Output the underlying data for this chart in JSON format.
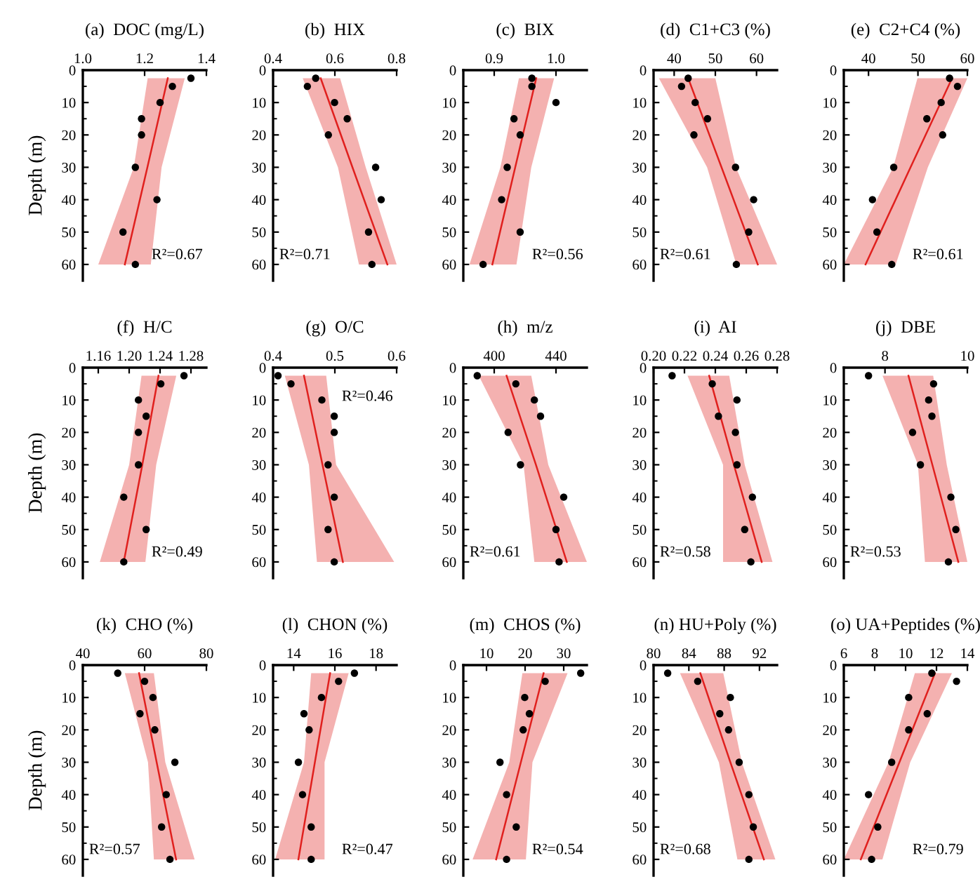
{
  "chart_data": [
    {
      "type": "scatter",
      "orientation": "horizontal",
      "title": "(a)  DOC (mg/L)",
      "ylabel": "Depth (m)",
      "xlim": [
        1.0,
        1.4
      ],
      "xticks": [
        {
          "value": 1.0,
          "label": "1.0"
        },
        1.2,
        1.4
      ],
      "ylim": [
        65,
        0
      ],
      "yticks": [
        0,
        10,
        20,
        30,
        40,
        50,
        60,
        {
          "value": 5,
          "label": null
        },
        {
          "value": 15,
          "label": null
        },
        {
          "value": 25,
          "label": null
        },
        {
          "value": 35,
          "label": null
        },
        {
          "value": 45,
          "label": null
        },
        {
          "value": 55,
          "label": null
        }
      ],
      "annotations": [
        "R²=0.67"
      ],
      "series": [
        {
          "marker": "circle",
          "color": "#000000",
          "x": [
            2.5,
            5,
            10,
            15,
            20,
            30,
            40,
            50,
            60
          ],
          "values": [
            1.35,
            1.29,
            1.25,
            1.19,
            1.19,
            1.17,
            1.24,
            1.13,
            1.17
          ]
        },
        {
          "type": "line",
          "color": "#e0201e",
          "x": [
            2.5,
            30,
            60
          ],
          "values": [
            1.275,
            1.209,
            1.136
          ],
          "lower": [
            1.21,
            1.165,
            1.05
          ],
          "upper": [
            1.33,
            1.255,
            1.22
          ]
        }
      ]
    },
    {
      "type": "scatter",
      "orientation": "horizontal",
      "title": "(b)  HIX",
      "xlim": [
        0.4,
        0.8
      ],
      "xticks": [
        0.4,
        0.6,
        0.8
      ],
      "ylim": [
        65,
        0
      ],
      "yticks": [
        0,
        10,
        20,
        30,
        40,
        50,
        60,
        {
          "value": 5,
          "label": null
        },
        {
          "value": 15,
          "label": null
        },
        {
          "value": 25,
          "label": null
        },
        {
          "value": 35,
          "label": null
        },
        {
          "value": 45,
          "label": null
        },
        {
          "value": 55,
          "label": null
        }
      ],
      "annotations": [
        "R²=0.71"
      ],
      "series": [
        {
          "marker": "circle",
          "color": "#000000",
          "x": [
            2.5,
            5,
            10,
            15,
            20,
            30,
            40,
            50,
            60
          ],
          "values": [
            0.538,
            0.511,
            0.599,
            0.64,
            0.579,
            0.732,
            0.75,
            0.709,
            0.72
          ]
        },
        {
          "type": "line",
          "color": "#e0201e",
          "x": [
            2.5,
            30,
            60
          ],
          "values": [
            0.554,
            0.657,
            0.77
          ],
          "lower": [
            0.496,
            0.61,
            0.678
          ],
          "upper": [
            0.617,
            0.7,
            0.8
          ]
        }
      ]
    },
    {
      "type": "scatter",
      "orientation": "horizontal",
      "title": "(c)  BIX",
      "xlim": [
        0.85,
        1.05
      ],
      "xticks": [
        0.9,
        {
          "value": 1.0,
          "label": "1.0"
        }
      ],
      "ylim": [
        65,
        0
      ],
      "yticks": [
        0,
        10,
        20,
        30,
        40,
        50,
        60,
        {
          "value": 5,
          "label": null
        },
        {
          "value": 15,
          "label": null
        },
        {
          "value": 25,
          "label": null
        },
        {
          "value": 35,
          "label": null
        },
        {
          "value": 45,
          "label": null
        },
        {
          "value": 55,
          "label": null
        }
      ],
      "annotations": [
        "R²=0.56"
      ],
      "series": [
        {
          "marker": "circle",
          "color": "#000000",
          "x": [
            2.5,
            5,
            10,
            15,
            20,
            30,
            40,
            50,
            60
          ],
          "values": [
            0.961,
            0.961,
            1.0,
            0.932,
            0.942,
            0.921,
            0.912,
            0.942,
            0.882
          ]
        },
        {
          "type": "line",
          "color": "#e0201e",
          "x": [
            2.5,
            30,
            60
          ],
          "values": [
            0.968,
            0.934,
            0.897
          ],
          "lower": [
            0.94,
            0.91,
            0.86
          ],
          "upper": [
            0.997,
            0.96,
            0.936
          ]
        }
      ]
    },
    {
      "type": "scatter",
      "orientation": "horizontal",
      "title": "(d)  C1+C3 (%)",
      "xlim": [
        35,
        65
      ],
      "xticks": [
        40,
        50,
        60
      ],
      "ylim": [
        65,
        0
      ],
      "yticks": [
        0,
        10,
        20,
        30,
        40,
        50,
        60,
        {
          "value": 5,
          "label": null
        },
        {
          "value": 15,
          "label": null
        },
        {
          "value": 25,
          "label": null
        },
        {
          "value": 35,
          "label": null
        },
        {
          "value": 45,
          "label": null
        },
        {
          "value": 55,
          "label": null
        }
      ],
      "annotations": [
        "R²=0.61"
      ],
      "series": [
        {
          "marker": "circle",
          "color": "#000000",
          "x": [
            2.5,
            5,
            10,
            15,
            20,
            30,
            40,
            50,
            60
          ],
          "values": [
            43.4,
            41.8,
            45.1,
            48.1,
            44.8,
            54.9,
            59.3,
            58.1,
            55.1
          ]
        },
        {
          "type": "line",
          "color": "#e0201e",
          "x": [
            2.5,
            30,
            60
          ],
          "values": [
            43.4,
            51.5,
            60.3
          ],
          "lower": [
            36.3,
            48,
            55.1
          ],
          "upper": [
            50,
            55,
            65
          ]
        }
      ]
    },
    {
      "type": "scatter",
      "orientation": "horizontal",
      "title": "(e)  C2+C4 (%)",
      "xlim": [
        35,
        60
      ],
      "xticks": [
        40,
        50,
        60
      ],
      "ylim": [
        65,
        0
      ],
      "yticks": [
        0,
        10,
        20,
        30,
        40,
        50,
        60,
        {
          "value": 5,
          "label": null
        },
        {
          "value": 15,
          "label": null
        },
        {
          "value": 25,
          "label": null
        },
        {
          "value": 35,
          "label": null
        },
        {
          "value": 45,
          "label": null
        },
        {
          "value": 55,
          "label": null
        }
      ],
      "annotations": [
        "R²=0.61"
      ],
      "series": [
        {
          "marker": "circle",
          "color": "#000000",
          "x": [
            2.5,
            5,
            10,
            15,
            20,
            30,
            40,
            50,
            60
          ],
          "values": [
            56.4,
            58,
            54.7,
            51.8,
            55,
            45.1,
            40.8,
            41.7,
            44.7
          ]
        },
        {
          "type": "line",
          "color": "#e0201e",
          "x": [
            2.5,
            30,
            60
          ],
          "values": [
            56.9,
            48.5,
            39.4
          ],
          "lower": [
            49.9,
            45,
            35
          ],
          "upper": [
            60,
            52,
            45.5
          ]
        }
      ]
    },
    {
      "type": "scatter",
      "orientation": "horizontal",
      "title": "(f)  H/C",
      "ylabel": "Depth (m)",
      "xlim": [
        1.14,
        1.3
      ],
      "xticks": [
        1.16,
        {
          "value": 1.2,
          "label": "1.20"
        },
        1.24,
        1.28
      ],
      "ylim": [
        65,
        0
      ],
      "yticks": [
        0,
        10,
        20,
        30,
        40,
        50,
        60,
        {
          "value": 5,
          "label": null
        },
        {
          "value": 15,
          "label": null
        },
        {
          "value": 25,
          "label": null
        },
        {
          "value": 35,
          "label": null
        },
        {
          "value": 45,
          "label": null
        },
        {
          "value": 55,
          "label": null
        }
      ],
      "annotations": [
        "R²=0.49"
      ],
      "series": [
        {
          "marker": "circle",
          "color": "#000000",
          "x": [
            2.5,
            5,
            10,
            15,
            20,
            30,
            40,
            50,
            60
          ],
          "values": [
            1.271,
            1.241,
            1.212,
            1.222,
            1.212,
            1.212,
            1.193,
            1.222,
            1.193
          ]
        },
        {
          "type": "line",
          "color": "#e0201e",
          "x": [
            2.5,
            30,
            60
          ],
          "values": [
            1.238,
            1.217,
            1.193
          ],
          "lower": [
            1.216,
            1.2,
            1.162
          ],
          "upper": [
            1.261,
            1.235,
            1.221
          ]
        }
      ]
    },
    {
      "type": "scatter",
      "orientation": "horizontal",
      "title": "(g)  O/C",
      "xlim": [
        0.4,
        0.6
      ],
      "xticks": [
        0.4,
        0.5,
        0.6
      ],
      "ylim": [
        65,
        0
      ],
      "yticks": [
        0,
        10,
        20,
        30,
        40,
        50,
        60,
        {
          "value": 5,
          "label": null
        },
        {
          "value": 15,
          "label": null
        },
        {
          "value": 25,
          "label": null
        },
        {
          "value": 35,
          "label": null
        },
        {
          "value": 45,
          "label": null
        },
        {
          "value": 55,
          "label": null
        }
      ],
      "annotations": [
        "R²=0.46"
      ],
      "series": [
        {
          "marker": "circle",
          "color": "#000000",
          "x": [
            2.5,
            5,
            10,
            15,
            20,
            30,
            40,
            50,
            60
          ],
          "values": [
            0.408,
            0.429,
            0.479,
            0.499,
            0.499,
            0.489,
            0.499,
            0.489,
            0.499
          ]
        },
        {
          "type": "line",
          "color": "#e0201e",
          "x": [
            2.5,
            30,
            60
          ],
          "values": [
            0.45,
            0.48,
            0.513
          ],
          "lower": [
            0.419,
            0.458,
            0.471
          ],
          "upper": [
            0.486,
            0.502,
            0.596
          ]
        }
      ]
    },
    {
      "type": "scatter",
      "orientation": "horizontal",
      "title": "(h)  m/z",
      "xlim": [
        380,
        460
      ],
      "xticks": [
        400,
        440
      ],
      "ylim": [
        65,
        0
      ],
      "yticks": [
        0,
        10,
        20,
        30,
        40,
        50,
        60,
        {
          "value": 5,
          "label": null
        },
        {
          "value": 15,
          "label": null
        },
        {
          "value": 25,
          "label": null
        },
        {
          "value": 35,
          "label": null
        },
        {
          "value": 45,
          "label": null
        },
        {
          "value": 55,
          "label": null
        }
      ],
      "annotations": [
        "R²=0.61"
      ],
      "series": [
        {
          "marker": "circle",
          "color": "#000000",
          "x": [
            2.5,
            5,
            10,
            15,
            20,
            30,
            40,
            50,
            60
          ],
          "values": [
            389,
            414,
            426,
            430,
            409,
            417,
            445,
            440,
            442
          ]
        },
        {
          "type": "line",
          "color": "#e0201e",
          "x": [
            2.5,
            30,
            60
          ],
          "values": [
            408,
            427,
            447
          ],
          "lower": [
            390,
            419,
            426
          ],
          "upper": [
            424,
            435,
            460
          ]
        }
      ]
    },
    {
      "type": "scatter",
      "orientation": "horizontal",
      "title": "(i)  AI",
      "xlim": [
        0.2,
        0.28
      ],
      "xticks": [
        {
          "value": 0.2,
          "label": "0.20"
        },
        0.22,
        0.24,
        0.26,
        0.28
      ],
      "ylim": [
        65,
        0
      ],
      "yticks": [
        0,
        10,
        20,
        30,
        40,
        50,
        60,
        {
          "value": 5,
          "label": null
        },
        {
          "value": 15,
          "label": null
        },
        {
          "value": 25,
          "label": null
        },
        {
          "value": 35,
          "label": null
        },
        {
          "value": 45,
          "label": null
        },
        {
          "value": 55,
          "label": null
        }
      ],
      "annotations": [
        "R²=0.58"
      ],
      "series": [
        {
          "marker": "circle",
          "color": "#000000",
          "x": [
            2.5,
            5,
            10,
            15,
            20,
            30,
            40,
            50,
            60
          ],
          "values": [
            0.212,
            0.238,
            0.254,
            0.242,
            0.253,
            0.254,
            0.264,
            0.259,
            0.263
          ]
        },
        {
          "type": "line",
          "color": "#e0201e",
          "x": [
            2.5,
            30,
            60
          ],
          "values": [
            0.236,
            0.252,
            0.27
          ],
          "lower": [
            0.222,
            0.245,
            0.245
          ],
          "upper": [
            0.249,
            0.259,
            0.277
          ]
        }
      ]
    },
    {
      "type": "scatter",
      "orientation": "horizontal",
      "title": "(j)  DBE",
      "xlim": [
        7,
        10
      ],
      "xticks": [
        8,
        10
      ],
      "ylim": [
        65,
        0
      ],
      "yticks": [
        0,
        10,
        20,
        30,
        40,
        50,
        60,
        {
          "value": 5,
          "label": null
        },
        {
          "value": 15,
          "label": null
        },
        {
          "value": 25,
          "label": null
        },
        {
          "value": 35,
          "label": null
        },
        {
          "value": 45,
          "label": null
        },
        {
          "value": 55,
          "label": null
        }
      ],
      "annotations": [
        "R²=0.53"
      ],
      "series": [
        {
          "marker": "circle",
          "color": "#000000",
          "x": [
            2.5,
            5,
            10,
            15,
            20,
            30,
            40,
            50,
            60
          ],
          "values": [
            7.6,
            9.18,
            9.06,
            9.14,
            8.67,
            8.86,
            9.6,
            9.72,
            9.54
          ]
        },
        {
          "type": "line",
          "color": "#e0201e",
          "x": [
            2.5,
            30,
            60
          ],
          "values": [
            8.57,
            9.15,
            9.78
          ],
          "lower": [
            7.94,
            8.8,
            8.97
          ],
          "upper": [
            9.17,
            9.5,
            10
          ]
        }
      ]
    },
    {
      "type": "scatter",
      "orientation": "horizontal",
      "title": "(k)  CHO (%)",
      "ylabel": "Depth (m)",
      "xlim": [
        40,
        80
      ],
      "xticks": [
        40,
        60,
        80
      ],
      "ylim": [
        65,
        0
      ],
      "yticks": [
        0,
        10,
        20,
        30,
        40,
        50,
        60,
        {
          "value": 5,
          "label": null
        },
        {
          "value": 15,
          "label": null
        },
        {
          "value": 25,
          "label": null
        },
        {
          "value": 35,
          "label": null
        },
        {
          "value": 45,
          "label": null
        },
        {
          "value": 55,
          "label": null
        }
      ],
      "annotations": [
        "R²=0.57"
      ],
      "series": [
        {
          "marker": "circle",
          "color": "#000000",
          "x": [
            2.5,
            5,
            10,
            15,
            20,
            30,
            40,
            50,
            60
          ],
          "values": [
            51.3,
            60,
            62.7,
            58.5,
            63.3,
            69.8,
            67,
            65.5,
            68.2
          ]
        },
        {
          "type": "line",
          "color": "#e0201e",
          "x": [
            2.5,
            30,
            60
          ],
          "values": [
            58.2,
            63.9,
            70.2
          ],
          "lower": [
            53.6,
            61.1,
            63
          ],
          "upper": [
            63,
            66.7,
            76.2
          ]
        }
      ]
    },
    {
      "type": "scatter",
      "orientation": "horizontal",
      "title": "(l)  CHON (%)",
      "xlim": [
        13,
        19
      ],
      "xticks": [
        14,
        16,
        18
      ],
      "ylim": [
        65,
        0
      ],
      "yticks": [
        0,
        10,
        20,
        30,
        40,
        50,
        60,
        {
          "value": 5,
          "label": null
        },
        {
          "value": 15,
          "label": null
        },
        {
          "value": 25,
          "label": null
        },
        {
          "value": 35,
          "label": null
        },
        {
          "value": 45,
          "label": null
        },
        {
          "value": 55,
          "label": null
        }
      ],
      "annotations": [
        "R²=0.47"
      ],
      "series": [
        {
          "marker": "circle",
          "color": "#000000",
          "x": [
            2.5,
            5,
            10,
            15,
            20,
            30,
            40,
            50,
            60
          ],
          "values": [
            16.95,
            16.18,
            15.35,
            14.5,
            14.75,
            14.23,
            14.43,
            14.85,
            14.85
          ]
        },
        {
          "type": "line",
          "color": "#e0201e",
          "x": [
            2.5,
            30,
            60
          ],
          "values": [
            15.77,
            15.03,
            14.23
          ],
          "lower": [
            14.85,
            14.5,
            13.1
          ],
          "upper": [
            16.67,
            15.5,
            15.5
          ]
        }
      ]
    },
    {
      "type": "scatter",
      "orientation": "horizontal",
      "title": "(m)  CHOS (%)",
      "xlim": [
        4,
        36
      ],
      "xticks": [
        10,
        20,
        30
      ],
      "ylim": [
        65,
        0
      ],
      "yticks": [
        0,
        10,
        20,
        30,
        40,
        50,
        60,
        {
          "value": 5,
          "label": null
        },
        {
          "value": 15,
          "label": null
        },
        {
          "value": 25,
          "label": null
        },
        {
          "value": 35,
          "label": null
        },
        {
          "value": 45,
          "label": null
        },
        {
          "value": 55,
          "label": null
        }
      ],
      "annotations": [
        "R²=0.54"
      ],
      "series": [
        {
          "marker": "circle",
          "color": "#000000",
          "x": [
            2.5,
            5,
            10,
            15,
            20,
            30,
            40,
            50,
            60
          ],
          "values": [
            34.4,
            25.2,
            19.9,
            21.1,
            19.5,
            13.5,
            15.2,
            17.7,
            15.2
          ]
        },
        {
          "type": "line",
          "color": "#e0201e",
          "x": [
            2.5,
            30,
            60
          ],
          "values": [
            24.8,
            18.9,
            12.5
          ],
          "lower": [
            19.3,
            15.9,
            6.4
          ],
          "upper": [
            31,
            21.9,
            20.2
          ]
        }
      ]
    },
    {
      "type": "scatter",
      "orientation": "horizontal",
      "title": "(n) HU+Poly (%)",
      "xlim": [
        80,
        94
      ],
      "xticks": [
        80,
        84,
        88,
        92
      ],
      "ylim": [
        65,
        0
      ],
      "yticks": [
        0,
        10,
        20,
        30,
        40,
        50,
        60,
        {
          "value": 5,
          "label": null
        },
        {
          "value": 15,
          "label": null
        },
        {
          "value": 25,
          "label": null
        },
        {
          "value": 35,
          "label": null
        },
        {
          "value": 45,
          "label": null
        },
        {
          "value": 55,
          "label": null
        }
      ],
      "annotations": [
        "R²=0.68"
      ],
      "series": [
        {
          "marker": "circle",
          "color": "#000000",
          "x": [
            2.5,
            5,
            10,
            15,
            20,
            30,
            40,
            50,
            60
          ],
          "values": [
            81.6,
            85,
            88.7,
            87.5,
            88.5,
            89.7,
            90.8,
            91.3,
            90.8
          ]
        },
        {
          "type": "line",
          "color": "#e0201e",
          "x": [
            2.5,
            30,
            60
          ],
          "values": [
            85.3,
            88.7,
            92.5
          ],
          "lower": [
            83,
            87.4,
            89.5
          ],
          "upper": [
            87.9,
            90,
            93.8
          ]
        }
      ]
    },
    {
      "type": "scatter",
      "orientation": "horizontal",
      "title": "(o) UA+Peptides (%)",
      "xlim": [
        6,
        14
      ],
      "xticks": [
        6,
        8,
        10,
        12,
        14
      ],
      "ylim": [
        65,
        0
      ],
      "yticks": [
        0,
        10,
        20,
        30,
        40,
        50,
        60,
        {
          "value": 5,
          "label": null
        },
        {
          "value": 15,
          "label": null
        },
        {
          "value": 25,
          "label": null
        },
        {
          "value": 35,
          "label": null
        },
        {
          "value": 45,
          "label": null
        },
        {
          "value": 55,
          "label": null
        }
      ],
      "annotations": [
        "R²=0.79"
      ],
      "series": [
        {
          "marker": "circle",
          "color": "#000000",
          "x": [
            2.5,
            5,
            10,
            15,
            20,
            30,
            40,
            50,
            60
          ],
          "values": [
            11.7,
            13.3,
            10.2,
            11.4,
            10.2,
            9.1,
            7.6,
            8.2,
            7.8
          ]
        },
        {
          "type": "line",
          "color": "#e0201e",
          "x": [
            2.5,
            30,
            60
          ],
          "values": [
            11.9,
            9.6,
            7.1
          ],
          "lower": [
            10.6,
            8.9,
            6
          ],
          "upper": [
            13,
            10.3,
            8.5
          ]
        }
      ]
    }
  ]
}
